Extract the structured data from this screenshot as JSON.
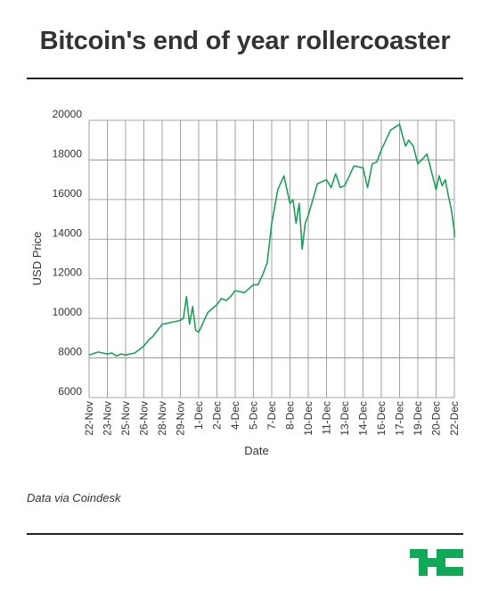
{
  "header": {
    "title": "Bitcoin's end of year rollercoaster"
  },
  "footer": {
    "source": "Data via Coindesk"
  },
  "brand": {
    "logo": "TC",
    "color": "#0fa958"
  },
  "chart_data": {
    "type": "line",
    "title": "Bitcoin's end of year rollercoaster",
    "xlabel": "Date",
    "ylabel": "USD Price",
    "ylim": [
      6000,
      20000
    ],
    "yticks": [
      20000,
      18000,
      16000,
      14000,
      12000,
      10000,
      8000,
      6000
    ],
    "xtick_labels": [
      "22-Nov",
      "23-Nov",
      "25-Nov",
      "26-Nov",
      "28-Nov",
      "29-Nov",
      "1-Dec",
      "2-Dec",
      "4-Dec",
      "5-Dec",
      "7-Dec",
      "8-Dec",
      "10-Dec",
      "11-Dec",
      "13-Dec",
      "14-Dec",
      "16-Dec",
      "17-Dec",
      "19-Dec",
      "20-Dec",
      "22-Dec"
    ],
    "grid": true,
    "line_color": "#1f9e5a",
    "series": [
      {
        "x": [
          "22-Nov",
          "22-Nov",
          "23-Nov",
          "23-Nov",
          "24-Nov",
          "24-Nov",
          "25-Nov",
          "25-Nov",
          "26-Nov",
          "26-Nov",
          "27-Nov",
          "27-Nov",
          "28-Nov",
          "28-Nov",
          "29-Nov",
          "29-Nov",
          "29-Nov",
          "30-Nov",
          "30-Nov",
          "30-Nov",
          "1-Dec",
          "1-Dec",
          "2-Dec",
          "2-Dec",
          "3-Dec",
          "3-Dec",
          "4-Dec",
          "4-Dec",
          "5-Dec",
          "5-Dec",
          "6-Dec",
          "6-Dec",
          "7-Dec",
          "7-Dec",
          "7-Dec",
          "8-Dec",
          "8-Dec",
          "8-Dec",
          "9-Dec",
          "9-Dec",
          "9-Dec",
          "10-Dec",
          "10-Dec",
          "11-Dec",
          "11-Dec",
          "12-Dec",
          "12-Dec",
          "13-Dec",
          "13-Dec",
          "14-Dec",
          "14-Dec",
          "15-Dec",
          "15-Dec",
          "16-Dec",
          "16-Dec",
          "17-Dec",
          "17-Dec",
          "17-Dec",
          "18-Dec",
          "18-Dec",
          "19-Dec",
          "19-Dec",
          "20-Dec",
          "20-Dec",
          "20-Dec",
          "21-Dec",
          "21-Dec",
          "21-Dec",
          "22-Dec",
          "22-Dec"
        ],
        "values": [
          8150,
          8300,
          8200,
          8250,
          8100,
          8200,
          8150,
          8250,
          8600,
          8900,
          9100,
          9400,
          9700,
          9800,
          9900,
          10000,
          11100,
          9700,
          10600,
          9400,
          9300,
          10300,
          10700,
          11000,
          10900,
          11100,
          11400,
          11300,
          11700,
          11700,
          12200,
          12800,
          14800,
          16500,
          17200,
          15800,
          16000,
          14800,
          15800,
          13500,
          14800,
          15200,
          16800,
          17000,
          16600,
          17300,
          16600,
          16700,
          17700,
          17600,
          16600,
          17800,
          17900,
          18500,
          19500,
          19800,
          19200,
          18700,
          19000,
          18700,
          17800,
          18300,
          16500,
          17200,
          16700,
          17000,
          16200,
          15500,
          14400,
          14100
        ]
      }
    ]
  }
}
